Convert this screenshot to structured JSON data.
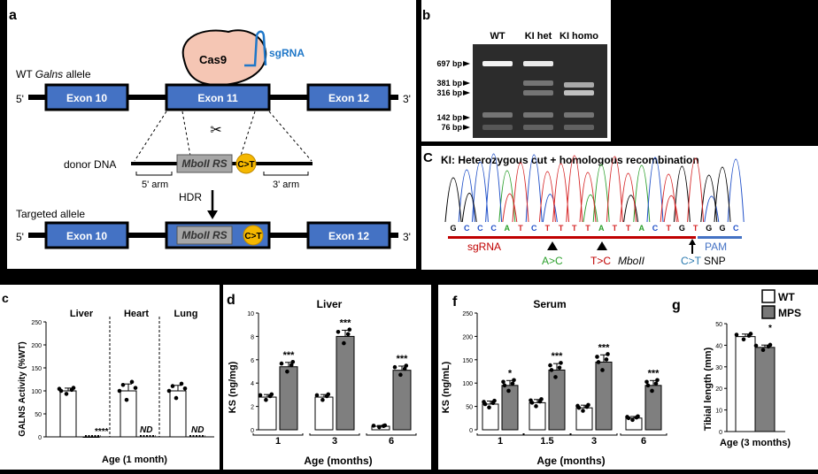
{
  "panel_a": {
    "letter": "a",
    "wt_label_prefix": "WT ",
    "wt_label_gene": "Galns",
    "wt_label_suffix": " allele",
    "cas9": "Cas9",
    "sgrna": "sgRNA",
    "five_prime": "5'",
    "three_prime": "3'",
    "exon10": "Exon 10",
    "exon11": "Exon 11",
    "exon12": "Exon 12",
    "donor_dna": "donor DNA",
    "mboii_rs": "MboII RS",
    "ct": "C>T",
    "arm5": "5' arm",
    "arm3": "3' arm",
    "hdr": "HDR",
    "targeted_allele": "Targeted allele"
  },
  "panel_b": {
    "letter": "b",
    "lanes": [
      "WT",
      "KI het",
      "KI homo"
    ],
    "markers": [
      "697 bp",
      "381 bp",
      "316 bp",
      "142 bp",
      "76 bp"
    ]
  },
  "panel_c": {
    "letter": "C",
    "title": "KI: Heterozygous cut + homologous recombination",
    "sequence": [
      "G",
      "C",
      "C",
      "C",
      "A",
      "T",
      "C",
      "T",
      "T",
      "T",
      "T",
      "A",
      "T",
      "T",
      "A",
      "C",
      "T",
      "G",
      "T",
      "G",
      "G",
      "C"
    ],
    "sgrna": "sgRNA",
    "pam": "PAM",
    "mut1": "A>C",
    "mut2": "T>C",
    "mut2_label": "MboII",
    "mut3": "C>T",
    "mut3_label": "SNP"
  },
  "panel_e": {
    "letter": "c",
    "ylabel": "GALNS Activity (%WT)",
    "xlabel": "Age (1 month)",
    "tissues": [
      "Liver",
      "Heart",
      "Lung"
    ],
    "yticks": [
      "0",
      "50",
      "100",
      "150",
      "200",
      "250"
    ],
    "sig": "****",
    "nd": "ND"
  },
  "panel_d": {
    "letter": "d",
    "title": "Liver",
    "ylabel": "KS (ng/mg)",
    "xlabel": "Age (months)",
    "categories": [
      "1",
      "3",
      "6"
    ],
    "yticks": [
      "0",
      "2",
      "4",
      "6",
      "8",
      "10"
    ],
    "sig": [
      "***",
      "***",
      "***"
    ]
  },
  "panel_f": {
    "letter": "f",
    "title": "Serum",
    "ylabel": "KS (ng/mL)",
    "xlabel": "Age (months)",
    "categories": [
      "1",
      "1.5",
      "3",
      "6"
    ],
    "yticks": [
      "0",
      "50",
      "100",
      "150",
      "200",
      "250"
    ],
    "sig": [
      "*",
      "***",
      "***",
      "***"
    ]
  },
  "panel_g": {
    "letter": "g",
    "ylabel": "Tibial length (mm)",
    "xlabel": "Age (3 months)",
    "yticks": [
      "0",
      "10",
      "20",
      "30",
      "40",
      "50"
    ],
    "sig": "*",
    "legend": [
      "WT",
      "MPS"
    ]
  },
  "chart_data": [
    {
      "type": "bar",
      "categories": [
        "Liver",
        "Heart",
        "Lung"
      ],
      "series": [
        {
          "name": "WT",
          "values": [
            100,
            100,
            100
          ]
        },
        {
          "name": "MPS",
          "values": [
            0,
            0,
            0
          ]
        }
      ],
      "ylabel": "GALNS Activity (%WT)",
      "xlabel": "Age (1 month)",
      "ylim": [
        0,
        250
      ]
    },
    {
      "type": "bar",
      "title": "Liver",
      "categories": [
        "1",
        "3",
        "6"
      ],
      "series": [
        {
          "name": "WT",
          "values": [
            2.8,
            2.8,
            0.3
          ]
        },
        {
          "name": "MPS",
          "values": [
            5.4,
            8.0,
            5.1
          ]
        }
      ],
      "ylabel": "KS (ng/mg)",
      "xlabel": "Age (months)",
      "ylim": [
        0,
        10
      ]
    },
    {
      "type": "bar",
      "title": "Serum",
      "categories": [
        "1",
        "1.5",
        "3",
        "6"
      ],
      "series": [
        {
          "name": "WT",
          "values": [
            55,
            58,
            47,
            25
          ]
        },
        {
          "name": "MPS",
          "values": [
            95,
            128,
            145,
            95
          ]
        }
      ],
      "ylabel": "KS (ng/mL)",
      "xlabel": "Age (months)",
      "ylim": [
        0,
        250
      ]
    },
    {
      "type": "bar",
      "categories": [
        "Age (3 months)"
      ],
      "series": [
        {
          "name": "WT",
          "values": [
            44
          ]
        },
        {
          "name": "MPS",
          "values": [
            39
          ]
        }
      ],
      "ylabel": "Tibial length (mm)",
      "ylim": [
        0,
        50
      ]
    }
  ]
}
